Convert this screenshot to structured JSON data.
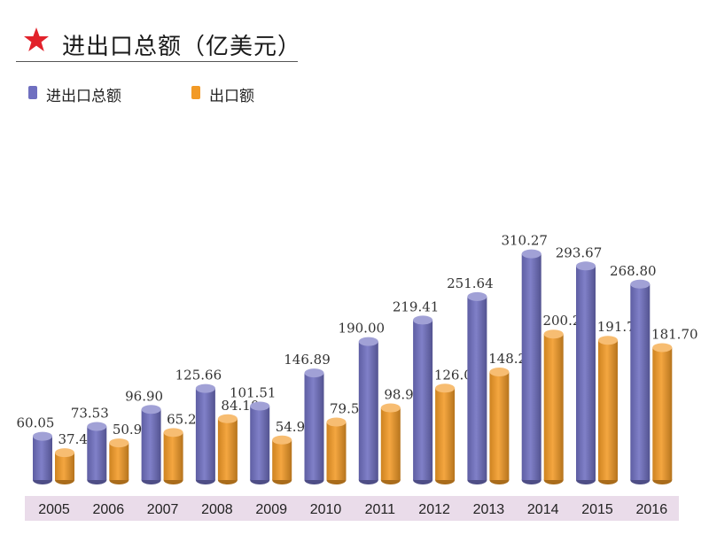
{
  "header": {
    "title": "进出口总额（亿美元）",
    "star_icon": "star-icon",
    "star_color": "#e2222b"
  },
  "legend": [
    {
      "label": "进出口总额",
      "color": "#6f6fc0"
    },
    {
      "label": "出口额",
      "color": "#f29a26"
    }
  ],
  "chart_data": {
    "type": "bar",
    "style": "3d-cylinder",
    "title": "进出口总额（亿美元）",
    "xlabel": "",
    "ylabel": "",
    "categories": [
      "2005",
      "2006",
      "2007",
      "2008",
      "2009",
      "2010",
      "2011",
      "2012",
      "2013",
      "2014",
      "2015",
      "2016"
    ],
    "series": [
      {
        "name": "进出口总额",
        "color": "#6f6fc0",
        "values": [
          60.05,
          73.53,
          96.9,
          125.66,
          101.51,
          146.89,
          190.0,
          219.41,
          251.64,
          310.27,
          293.67,
          268.8
        ],
        "labels": [
          "60.05",
          "73.53",
          "96.90",
          "125.66",
          "101.51",
          "146.89",
          "190.00",
          "219.41",
          "251.64",
          "310.27",
          "293.67",
          "268.80"
        ]
      },
      {
        "name": "出口额",
        "color": "#f29a26",
        "values": [
          37.47,
          50.94,
          65.23,
          84.1,
          54.92,
          79.55,
          98.97,
          126.0,
          148.21,
          200.23,
          191.73,
          181.7
        ],
        "labels": [
          "37.47",
          "50.94",
          "65.23",
          "84.10",
          "54.92",
          "79.55",
          "98.97",
          "126.00",
          "148.21",
          "200.23",
          "191.73",
          "181.70"
        ]
      }
    ],
    "legend_position": "top-left",
    "grid": false,
    "axis_band_color": "#eadcea",
    "ylim": [
      0,
      330
    ]
  }
}
